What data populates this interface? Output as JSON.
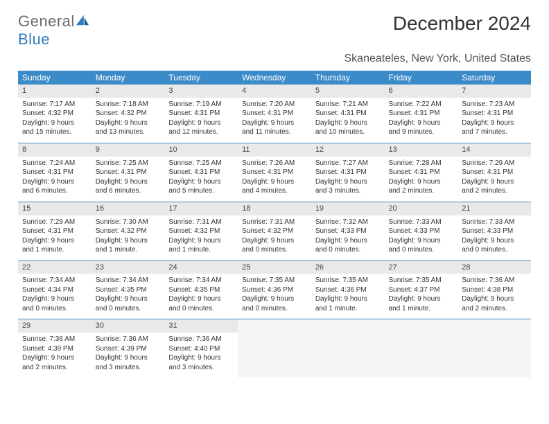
{
  "logo": {
    "general": "General",
    "blue": "Blue"
  },
  "title": "December 2024",
  "location": "Skaneateles, New York, United States",
  "colors": {
    "header_bg": "#3b8bc9",
    "header_fg": "#ffffff",
    "daynum_bg": "#e9e9e9",
    "row_divider": "#3b8bc9",
    "logo_general": "#6b6b6b",
    "logo_blue": "#2f7ec2"
  },
  "weekdays": [
    "Sunday",
    "Monday",
    "Tuesday",
    "Wednesday",
    "Thursday",
    "Friday",
    "Saturday"
  ],
  "days": [
    {
      "n": "1",
      "sunrise": "Sunrise: 7:17 AM",
      "sunset": "Sunset: 4:32 PM",
      "daylight": "Daylight: 9 hours and 15 minutes."
    },
    {
      "n": "2",
      "sunrise": "Sunrise: 7:18 AM",
      "sunset": "Sunset: 4:32 PM",
      "daylight": "Daylight: 9 hours and 13 minutes."
    },
    {
      "n": "3",
      "sunrise": "Sunrise: 7:19 AM",
      "sunset": "Sunset: 4:31 PM",
      "daylight": "Daylight: 9 hours and 12 minutes."
    },
    {
      "n": "4",
      "sunrise": "Sunrise: 7:20 AM",
      "sunset": "Sunset: 4:31 PM",
      "daylight": "Daylight: 9 hours and 11 minutes."
    },
    {
      "n": "5",
      "sunrise": "Sunrise: 7:21 AM",
      "sunset": "Sunset: 4:31 PM",
      "daylight": "Daylight: 9 hours and 10 minutes."
    },
    {
      "n": "6",
      "sunrise": "Sunrise: 7:22 AM",
      "sunset": "Sunset: 4:31 PM",
      "daylight": "Daylight: 9 hours and 9 minutes."
    },
    {
      "n": "7",
      "sunrise": "Sunrise: 7:23 AM",
      "sunset": "Sunset: 4:31 PM",
      "daylight": "Daylight: 9 hours and 7 minutes."
    },
    {
      "n": "8",
      "sunrise": "Sunrise: 7:24 AM",
      "sunset": "Sunset: 4:31 PM",
      "daylight": "Daylight: 9 hours and 6 minutes."
    },
    {
      "n": "9",
      "sunrise": "Sunrise: 7:25 AM",
      "sunset": "Sunset: 4:31 PM",
      "daylight": "Daylight: 9 hours and 6 minutes."
    },
    {
      "n": "10",
      "sunrise": "Sunrise: 7:25 AM",
      "sunset": "Sunset: 4:31 PM",
      "daylight": "Daylight: 9 hours and 5 minutes."
    },
    {
      "n": "11",
      "sunrise": "Sunrise: 7:26 AM",
      "sunset": "Sunset: 4:31 PM",
      "daylight": "Daylight: 9 hours and 4 minutes."
    },
    {
      "n": "12",
      "sunrise": "Sunrise: 7:27 AM",
      "sunset": "Sunset: 4:31 PM",
      "daylight": "Daylight: 9 hours and 3 minutes."
    },
    {
      "n": "13",
      "sunrise": "Sunrise: 7:28 AM",
      "sunset": "Sunset: 4:31 PM",
      "daylight": "Daylight: 9 hours and 2 minutes."
    },
    {
      "n": "14",
      "sunrise": "Sunrise: 7:29 AM",
      "sunset": "Sunset: 4:31 PM",
      "daylight": "Daylight: 9 hours and 2 minutes."
    },
    {
      "n": "15",
      "sunrise": "Sunrise: 7:29 AM",
      "sunset": "Sunset: 4:31 PM",
      "daylight": "Daylight: 9 hours and 1 minute."
    },
    {
      "n": "16",
      "sunrise": "Sunrise: 7:30 AM",
      "sunset": "Sunset: 4:32 PM",
      "daylight": "Daylight: 9 hours and 1 minute."
    },
    {
      "n": "17",
      "sunrise": "Sunrise: 7:31 AM",
      "sunset": "Sunset: 4:32 PM",
      "daylight": "Daylight: 9 hours and 1 minute."
    },
    {
      "n": "18",
      "sunrise": "Sunrise: 7:31 AM",
      "sunset": "Sunset: 4:32 PM",
      "daylight": "Daylight: 9 hours and 0 minutes."
    },
    {
      "n": "19",
      "sunrise": "Sunrise: 7:32 AM",
      "sunset": "Sunset: 4:33 PM",
      "daylight": "Daylight: 9 hours and 0 minutes."
    },
    {
      "n": "20",
      "sunrise": "Sunrise: 7:33 AM",
      "sunset": "Sunset: 4:33 PM",
      "daylight": "Daylight: 9 hours and 0 minutes."
    },
    {
      "n": "21",
      "sunrise": "Sunrise: 7:33 AM",
      "sunset": "Sunset: 4:33 PM",
      "daylight": "Daylight: 9 hours and 0 minutes."
    },
    {
      "n": "22",
      "sunrise": "Sunrise: 7:34 AM",
      "sunset": "Sunset: 4:34 PM",
      "daylight": "Daylight: 9 hours and 0 minutes."
    },
    {
      "n": "23",
      "sunrise": "Sunrise: 7:34 AM",
      "sunset": "Sunset: 4:35 PM",
      "daylight": "Daylight: 9 hours and 0 minutes."
    },
    {
      "n": "24",
      "sunrise": "Sunrise: 7:34 AM",
      "sunset": "Sunset: 4:35 PM",
      "daylight": "Daylight: 9 hours and 0 minutes."
    },
    {
      "n": "25",
      "sunrise": "Sunrise: 7:35 AM",
      "sunset": "Sunset: 4:36 PM",
      "daylight": "Daylight: 9 hours and 0 minutes."
    },
    {
      "n": "26",
      "sunrise": "Sunrise: 7:35 AM",
      "sunset": "Sunset: 4:36 PM",
      "daylight": "Daylight: 9 hours and 1 minute."
    },
    {
      "n": "27",
      "sunrise": "Sunrise: 7:35 AM",
      "sunset": "Sunset: 4:37 PM",
      "daylight": "Daylight: 9 hours and 1 minute."
    },
    {
      "n": "28",
      "sunrise": "Sunrise: 7:36 AM",
      "sunset": "Sunset: 4:38 PM",
      "daylight": "Daylight: 9 hours and 2 minutes."
    },
    {
      "n": "29",
      "sunrise": "Sunrise: 7:36 AM",
      "sunset": "Sunset: 4:39 PM",
      "daylight": "Daylight: 9 hours and 2 minutes."
    },
    {
      "n": "30",
      "sunrise": "Sunrise: 7:36 AM",
      "sunset": "Sunset: 4:39 PM",
      "daylight": "Daylight: 9 hours and 3 minutes."
    },
    {
      "n": "31",
      "sunrise": "Sunrise: 7:36 AM",
      "sunset": "Sunset: 4:40 PM",
      "daylight": "Daylight: 9 hours and 3 minutes."
    }
  ],
  "layout": {
    "columns": 7,
    "rows": 5,
    "first_weekday_index": 0,
    "total_days": 31
  }
}
